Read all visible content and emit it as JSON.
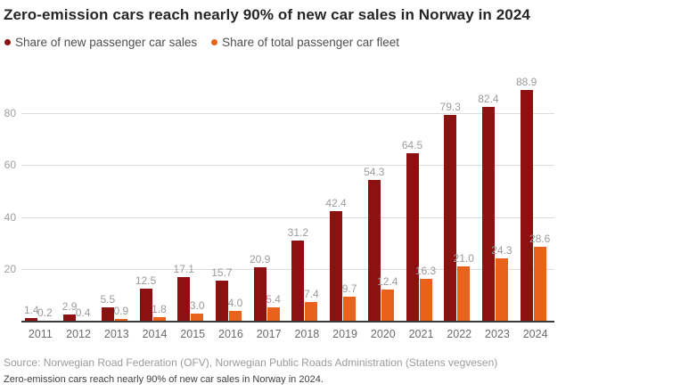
{
  "title": "Zero-emission cars reach nearly 90% of new car sales in Norway in 2024",
  "legend": [
    {
      "label": "Share of new passenger car sales",
      "color": "#8e1111"
    },
    {
      "label": "Share of total passenger car fleet",
      "color": "#e8621c"
    }
  ],
  "chart_data": {
    "type": "bar",
    "title": "Zero-emission cars reach nearly 90% of new car sales in Norway in 2024",
    "categories": [
      "2011",
      "2012",
      "2013",
      "2014",
      "2015",
      "2016",
      "2017",
      "2018",
      "2019",
      "2020",
      "2021",
      "2022",
      "2023",
      "2024"
    ],
    "series": [
      {
        "name": "Share of new passenger car sales",
        "values": [
          1.4,
          2.9,
          5.5,
          12.5,
          17.1,
          15.7,
          20.9,
          31.2,
          42.4,
          54.3,
          64.5,
          79.3,
          82.4,
          88.9
        ]
      },
      {
        "name": "Share of total passenger car fleet",
        "values": [
          0.2,
          0.4,
          0.9,
          1.8,
          3.0,
          4.0,
          5.4,
          7.4,
          9.7,
          12.4,
          16.3,
          21.0,
          24.3,
          28.6
        ]
      }
    ],
    "xlabel": "",
    "ylabel": "",
    "ylim": [
      0,
      90
    ],
    "yticks": [
      20,
      40,
      60,
      80
    ],
    "grid": true,
    "legend_position": "top-left",
    "value_labels": "one-decimal"
  },
  "colors": {
    "sales": "#8e1111",
    "fleet": "#e8621c",
    "grid": "#dcdcdc",
    "axis": "#3a3a3a",
    "value_label": "#9b9b9b",
    "tick_label": "#9e9e9e",
    "year_label": "#6b6b6b"
  },
  "source": "Source: Norwegian Road Federation (OFV), Norwegian Public Roads Administration (Statens vegvesen)",
  "caption": "Zero-emission cars reach nearly 90% of new car sales in Norway in 2024."
}
